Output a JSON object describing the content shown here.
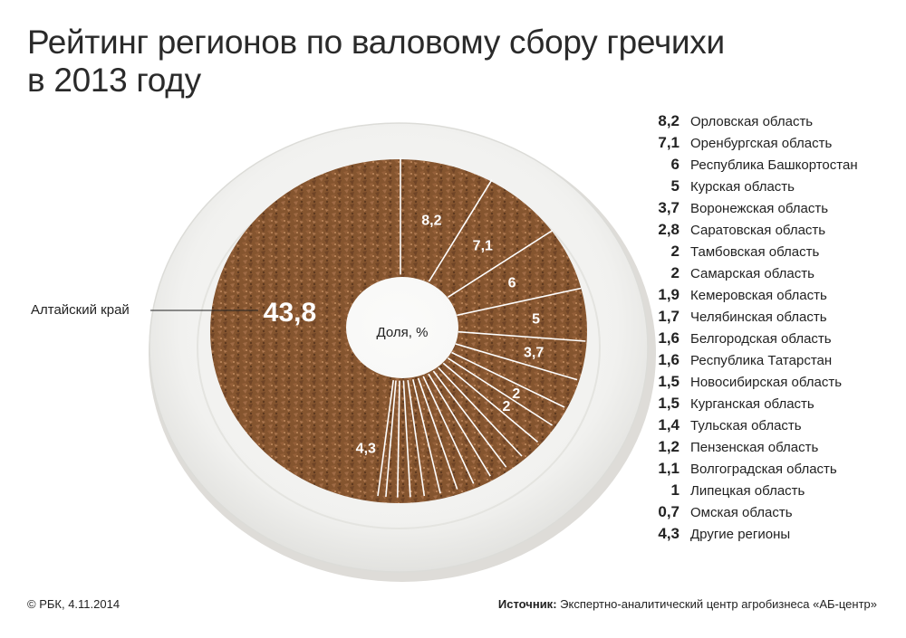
{
  "title_line1": "Рейтинг регионов по валовому сбору гречихи",
  "title_line2": "в 2013 году",
  "center_label": "Доля, %",
  "footer": {
    "copyright": "© РБК, 4.11.2014",
    "source_label": "Источник:",
    "source_text": " Экспертно-аналитический центр агробизнеса «АБ-центр»"
  },
  "colors": {
    "plate": "#f2f2f0",
    "plate_rim": "#e6e6e3",
    "buckwheat": "#8a5a36",
    "buckwheat_dark": "#6b4226",
    "buckwheat_light": "#a87450",
    "separator": "#ffffff",
    "text": "#222222"
  },
  "chart_data": {
    "type": "pie",
    "title": "Рейтинг регионов по валовому сбору гречихи в 2013 году",
    "unit_label": "Доля, %",
    "slices": [
      {
        "name": "Орловская область",
        "value": 8.2,
        "label": "8,2",
        "shown_on_plate": true
      },
      {
        "name": "Оренбургская область",
        "value": 7.1,
        "label": "7,1",
        "shown_on_plate": true
      },
      {
        "name": "Республика Башкортостан",
        "value": 6,
        "label": "6",
        "shown_on_plate": true
      },
      {
        "name": "Курская область",
        "value": 5,
        "label": "5",
        "shown_on_plate": true
      },
      {
        "name": "Воронежская область",
        "value": 3.7,
        "label": "3,7",
        "shown_on_plate": true
      },
      {
        "name": "Саратовская область",
        "value": 2.8,
        "label": "2,8",
        "shown_on_plate": false
      },
      {
        "name": "Тамбовская область",
        "value": 2,
        "label": "2",
        "shown_on_plate": true
      },
      {
        "name": "Самарская область",
        "value": 2,
        "label": "2",
        "shown_on_plate": true
      },
      {
        "name": "Кемеровская область",
        "value": 1.9,
        "label": "1,9",
        "shown_on_plate": false
      },
      {
        "name": "Челябинская область",
        "value": 1.7,
        "label": "1,7",
        "shown_on_plate": false
      },
      {
        "name": "Белгородская область",
        "value": 1.6,
        "label": "1,6",
        "shown_on_plate": false
      },
      {
        "name": "Республика Татарстан",
        "value": 1.6,
        "label": "1,6",
        "shown_on_plate": false
      },
      {
        "name": "Новосибирская область",
        "value": 1.5,
        "label": "1,5",
        "shown_on_plate": false
      },
      {
        "name": "Курганская область",
        "value": 1.5,
        "label": "1,5",
        "shown_on_plate": false
      },
      {
        "name": "Тульская область",
        "value": 1.4,
        "label": "1,4",
        "shown_on_plate": false
      },
      {
        "name": "Пензенская область",
        "value": 1.2,
        "label": "1,2",
        "shown_on_plate": false
      },
      {
        "name": "Волгоградская область",
        "value": 1.1,
        "label": "1,1",
        "shown_on_plate": false
      },
      {
        "name": "Липецкая область",
        "value": 1,
        "label": "1",
        "shown_on_plate": false
      },
      {
        "name": "Омская область",
        "value": 0.7,
        "label": "0,7",
        "shown_on_plate": false
      },
      {
        "name": "Другие регионы",
        "value": 4.3,
        "label": "4,3",
        "shown_on_plate": true
      },
      {
        "name": "Алтайский край",
        "value": 43.8,
        "label": "43,8",
        "shown_on_plate": true,
        "callout": true
      }
    ],
    "legend_placement": "right"
  }
}
